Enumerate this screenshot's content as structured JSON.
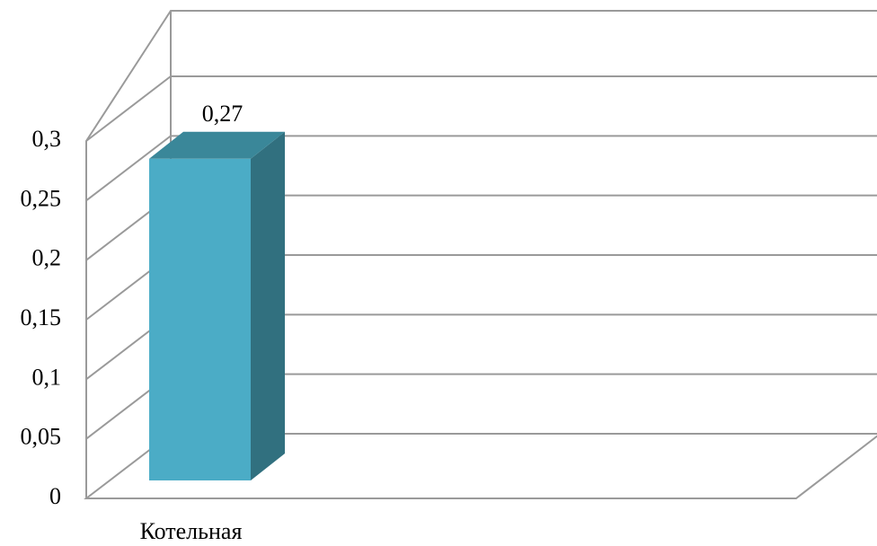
{
  "chart_data": {
    "type": "bar",
    "style": "3d-column",
    "categories": [
      "Котельная"
    ],
    "values": [
      0.27
    ],
    "data_labels": [
      "0,27"
    ],
    "title": "",
    "xlabel": "",
    "ylabel": "",
    "ylim": [
      0,
      0.3
    ],
    "y_ticks": [
      0,
      0.05,
      0.1,
      0.15,
      0.2,
      0.25,
      0.3
    ],
    "y_tick_labels": [
      "0",
      "0,05",
      "0,1",
      "0,15",
      "0,2",
      "0,25",
      "0,3"
    ],
    "grid": true,
    "legend": "none",
    "colors": {
      "bar_front": "#4BACC6",
      "bar_side": "#31707F",
      "bar_top": "#3A8799",
      "grid": "#9A9A9A"
    }
  }
}
